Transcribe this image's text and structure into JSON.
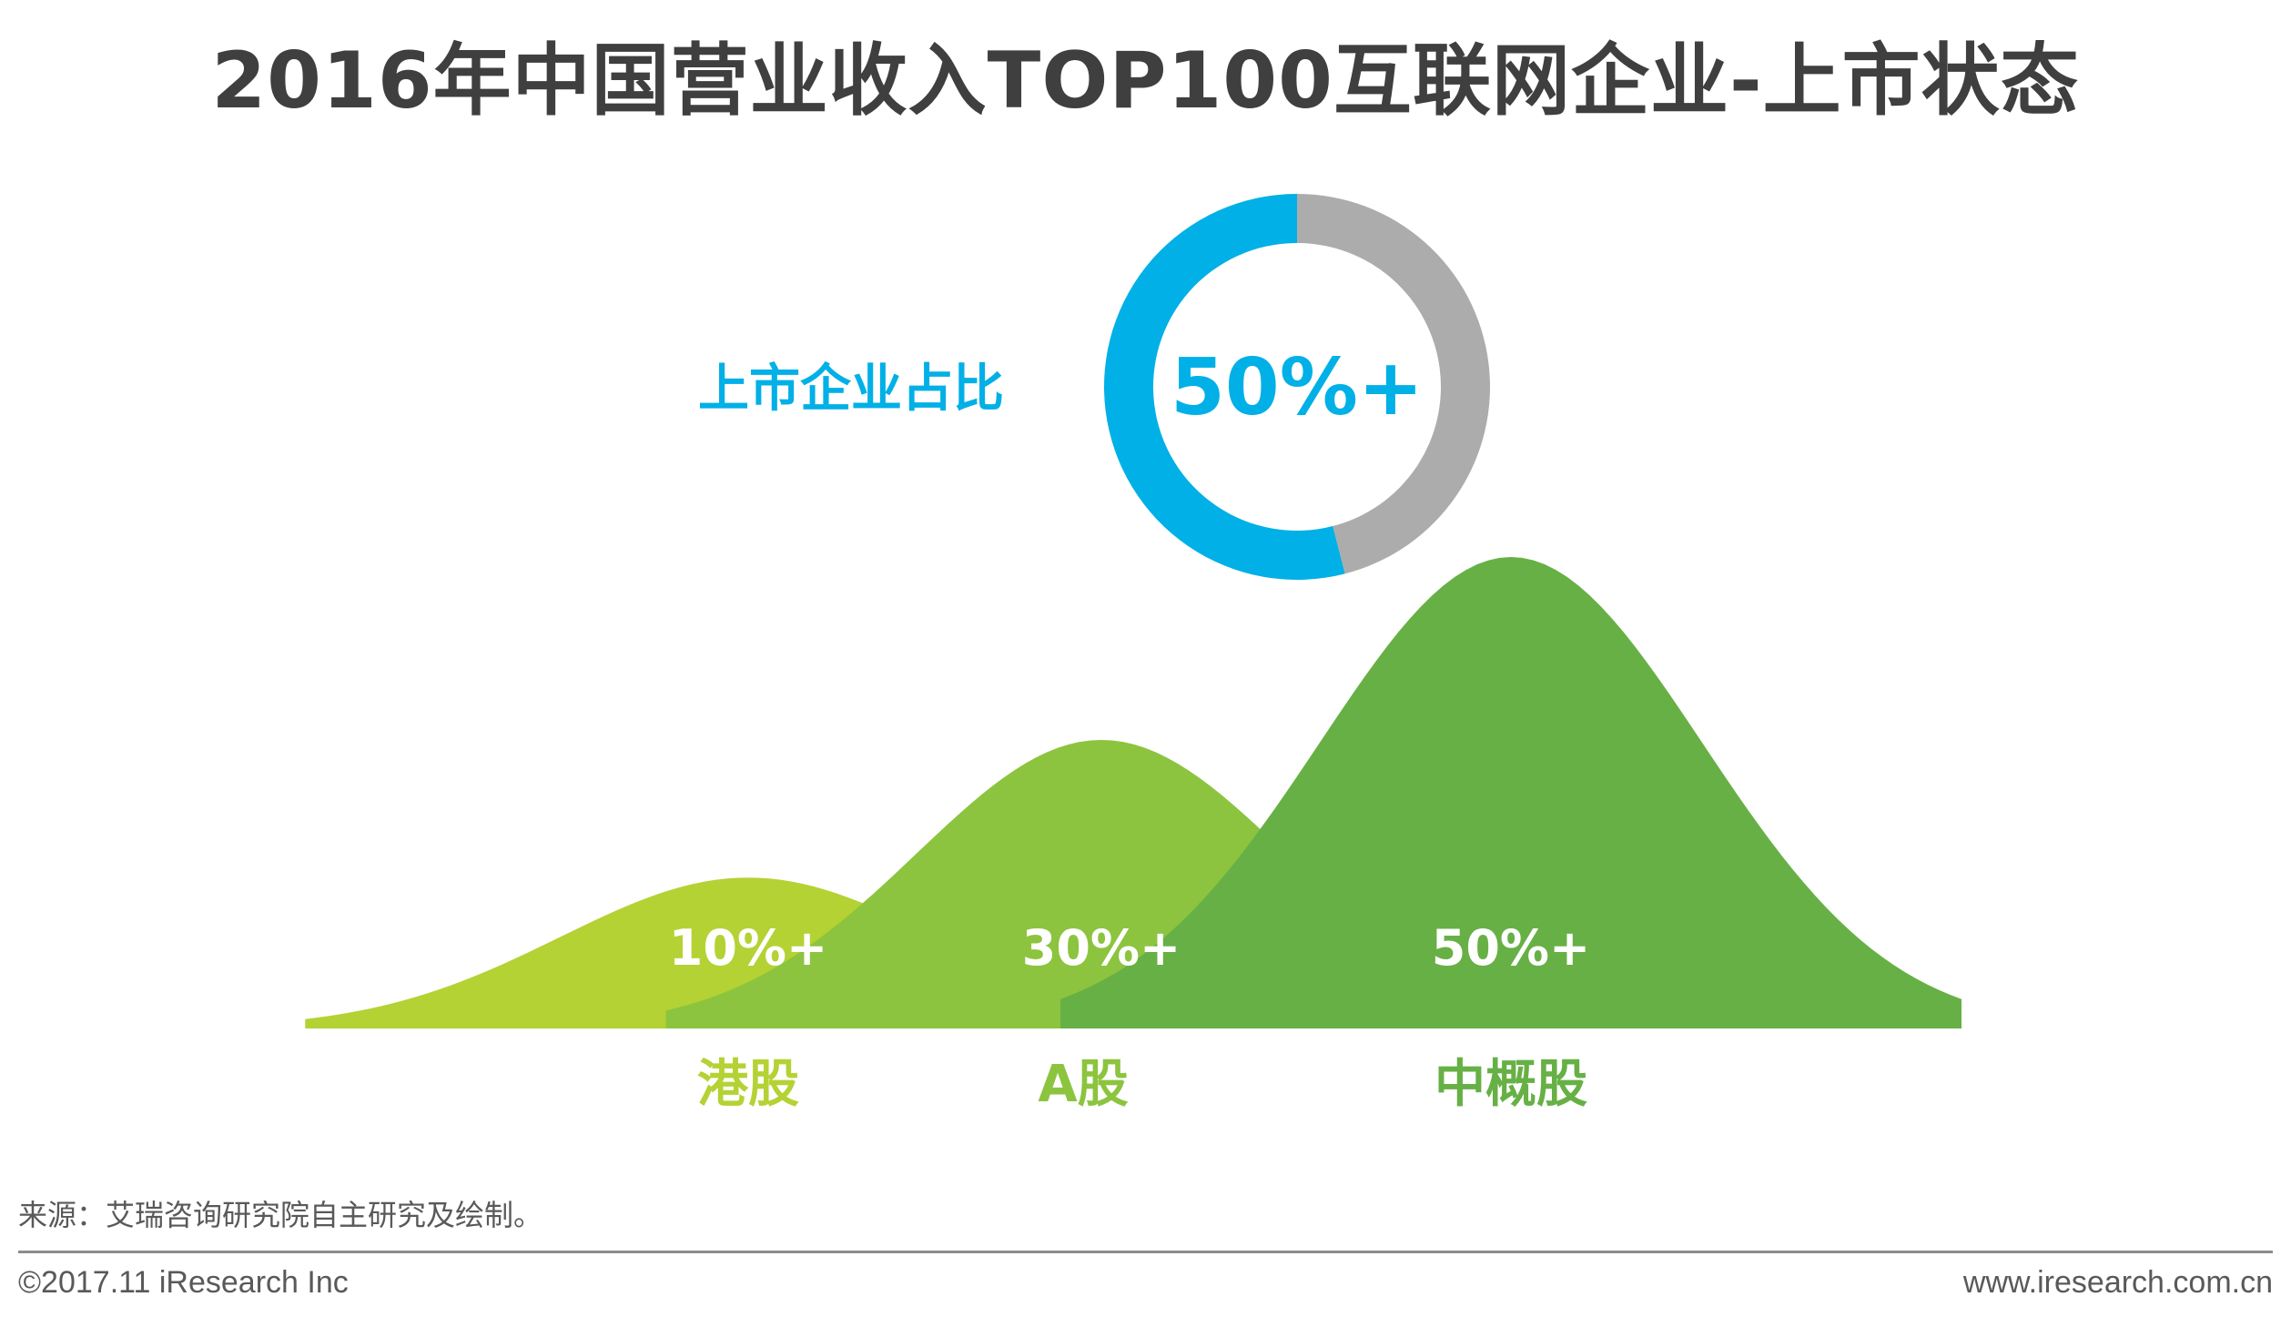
{
  "title": "2016年中国营业收入TOP100互联网企业-上市状态",
  "colors": {
    "listed_blue": "#00b0e6",
    "remainder_gray": "#acacac",
    "hk_green": "#b4d234",
    "a_share_green": "#8cc43f",
    "us_china_green": "#67b045",
    "title_text": "#3f3f3f",
    "footer_text": "#595959"
  },
  "chart_data": [
    {
      "type": "pie",
      "variant": "donut",
      "label": "上市企业占比",
      "center_label": "50%+",
      "slices": [
        {
          "name": "上市企业",
          "value": 54
        },
        {
          "name": "",
          "value": 46
        }
      ]
    },
    {
      "type": "area",
      "variant": "bell-curves",
      "categories": [
        "港股",
        "A股",
        "中概股"
      ],
      "values": [
        10,
        30,
        50
      ],
      "value_labels": [
        "10%+",
        "30%+",
        "50%+"
      ]
    }
  ],
  "footer": {
    "source": "来源：艾瑞咨询研究院自主研究及绘制。",
    "copyright": "©2017.11 iResearch Inc",
    "website": "www.iresearch.com.cn"
  }
}
